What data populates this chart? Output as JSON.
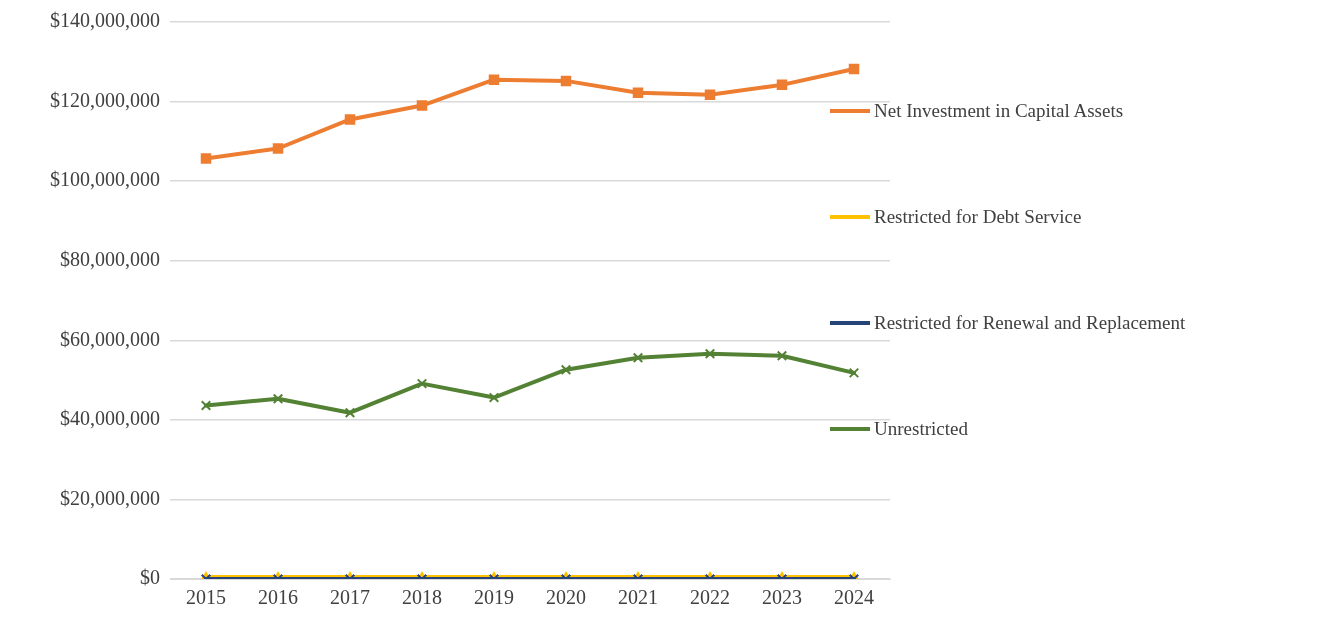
{
  "chart_data": {
    "type": "line",
    "categories": [
      "2015",
      "2016",
      "2017",
      "2018",
      "2019",
      "2020",
      "2021",
      "2022",
      "2023",
      "2024"
    ],
    "series": [
      {
        "name": "Net Investment in Capital Assets",
        "color": "#ed7d31",
        "marker": "square",
        "values": [
          105700000.0,
          108200000.0,
          115500000.0,
          119000000.0,
          125500000.0,
          125200000.0,
          122200000.0,
          121700000.0,
          124200000.0,
          128200000.0
        ]
      },
      {
        "name": "Restricted for Debt Service",
        "color": "#ffc000",
        "marker": "triangle",
        "values": [
          0,
          0,
          0,
          0,
          0,
          0,
          0,
          0,
          0,
          0
        ]
      },
      {
        "name": "Restricted for Renewal and Replacement",
        "color": "#264478",
        "marker": "cross",
        "values": [
          0,
          0,
          0,
          0,
          0,
          0,
          0,
          0,
          0,
          0
        ]
      },
      {
        "name": "Unrestricted",
        "color": "#548235",
        "marker": "cross",
        "values": [
          43600000.0,
          45300000.0,
          41800000.0,
          49100000.0,
          45600000.0,
          52600000.0,
          55600000.0,
          56600000.0,
          56100000.0,
          51800000.0
        ]
      }
    ],
    "ylim": [
      0,
      140000000
    ],
    "yticks": [
      {
        "value": 0,
        "label": "$0"
      },
      {
        "value": 20000000,
        "label": "$20,000,000"
      },
      {
        "value": 40000000,
        "label": "$40,000,000"
      },
      {
        "value": 60000000,
        "label": "$60,000,000"
      },
      {
        "value": 80000000,
        "label": "$80,000,000"
      },
      {
        "value": 100000000,
        "label": "$100,000,000"
      },
      {
        "value": 120000000,
        "label": "$120,000,000"
      },
      {
        "value": 140000000,
        "label": "$140,000,000"
      }
    ],
    "grid": "y",
    "legend": "right",
    "line_style": "solid"
  }
}
